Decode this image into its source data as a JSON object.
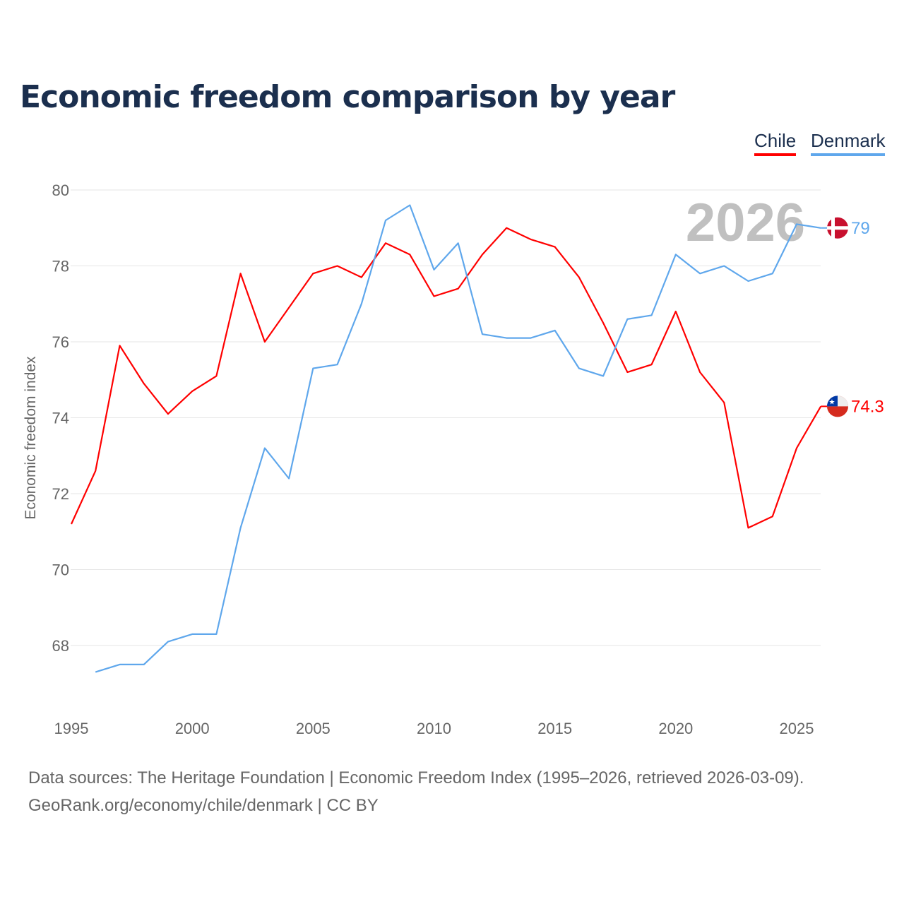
{
  "chart_data": {
    "type": "line",
    "title": "Economic freedom comparison by year",
    "xlabel": "",
    "ylabel": "Economic freedom index",
    "xlim": [
      1995,
      2026
    ],
    "ylim": [
      66.5,
      80
    ],
    "x_ticks": [
      "1995",
      "2000",
      "2005",
      "2010",
      "2015",
      "2020",
      "2025"
    ],
    "y_ticks": [
      "68",
      "70",
      "72",
      "74",
      "76",
      "78",
      "80"
    ],
    "grid": true,
    "legend_position": "top-right",
    "year_watermark": "2026",
    "series": [
      {
        "name": "Chile",
        "color": "#ff0000",
        "end_label": "74.3",
        "x": [
          1995,
          1996,
          1997,
          1998,
          1999,
          2000,
          2001,
          2002,
          2003,
          2004,
          2005,
          2006,
          2007,
          2008,
          2009,
          2010,
          2011,
          2012,
          2013,
          2014,
          2015,
          2016,
          2017,
          2018,
          2019,
          2020,
          2021,
          2022,
          2023,
          2024,
          2025,
          2026
        ],
        "values": [
          71.2,
          72.6,
          75.9,
          74.9,
          74.1,
          74.7,
          75.1,
          77.8,
          76.0,
          76.9,
          77.8,
          78.0,
          77.7,
          78.6,
          78.3,
          77.2,
          77.4,
          78.3,
          79.0,
          78.7,
          78.5,
          77.7,
          76.5,
          75.2,
          75.4,
          76.8,
          75.2,
          74.4,
          71.1,
          71.4,
          73.2,
          74.3
        ]
      },
      {
        "name": "Denmark",
        "color": "#5fa7ec",
        "end_label": "79",
        "x": [
          1996,
          1997,
          1998,
          1999,
          2000,
          2001,
          2002,
          2003,
          2004,
          2005,
          2006,
          2007,
          2008,
          2009,
          2010,
          2011,
          2012,
          2013,
          2014,
          2015,
          2016,
          2017,
          2018,
          2019,
          2020,
          2021,
          2022,
          2023,
          2024,
          2025,
          2026
        ],
        "values": [
          67.3,
          67.5,
          67.5,
          68.1,
          68.3,
          68.3,
          71.1,
          73.2,
          72.4,
          75.3,
          75.4,
          77.0,
          79.2,
          79.6,
          77.9,
          78.6,
          76.2,
          76.1,
          76.1,
          76.3,
          75.3,
          75.1,
          76.6,
          76.7,
          78.3,
          77.8,
          78.0,
          77.6,
          77.8,
          79.1,
          79.0
        ]
      }
    ]
  },
  "footer": {
    "line1": "Data sources: The Heritage Foundation | Economic Freedom Index (1995–2026, retrieved 2026-03-09).",
    "line2": "GeoRank.org/economy/chile/denmark | CC BY"
  }
}
